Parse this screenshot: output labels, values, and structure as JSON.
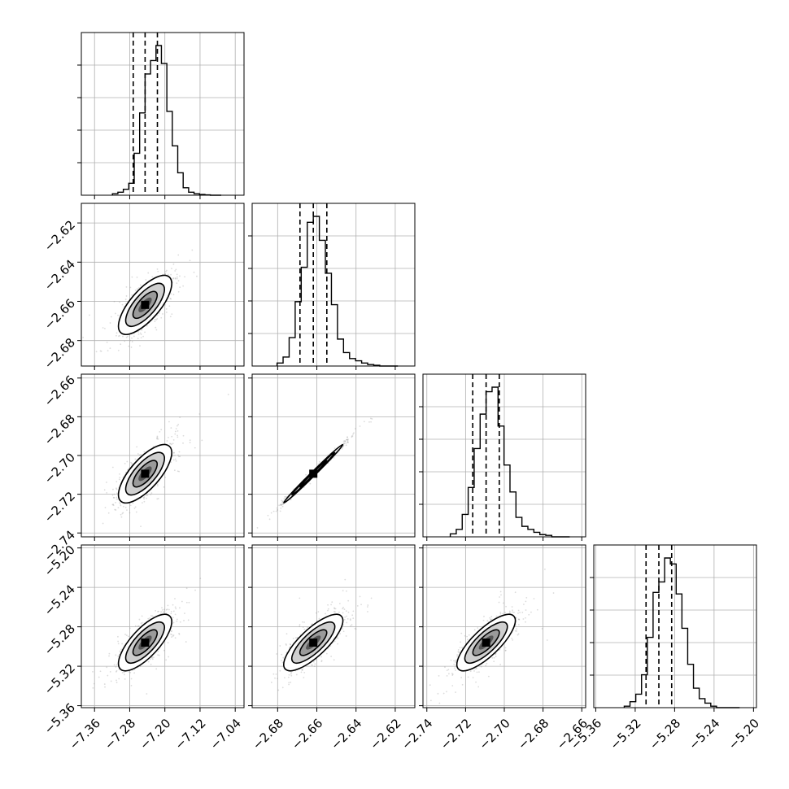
{
  "chart_data": {
    "type": "corner",
    "colors": {
      "line": "#000000",
      "grid": "#b0b0b0",
      "scatter": "#9a9a9a",
      "background": "#ffffff"
    },
    "grid": true,
    "parameters": [
      {
        "range": [
          -7.39,
          -7.02
        ],
        "ticks": [
          "-7.36",
          "-7.28",
          "-7.20",
          "-7.12",
          "-7.04"
        ],
        "tick_values": [
          -7.36,
          -7.28,
          -7.2,
          -7.12,
          -7.04
        ],
        "quantiles": [
          -7.272,
          -7.245,
          -7.217
        ]
      },
      {
        "range": [
          -2.693,
          -2.61
        ],
        "ticks": [
          "-2.68",
          "-2.66",
          "-2.64",
          "-2.62"
        ],
        "tick_values": [
          -2.68,
          -2.66,
          -2.64,
          -2.62
        ],
        "quantiles": [
          -2.6686,
          -2.6618,
          -2.6549
        ]
      },
      {
        "range": [
          -2.742,
          -2.658
        ],
        "ticks": [
          "-2.74",
          "-2.72",
          "-2.70",
          "-2.68",
          "-2.66"
        ],
        "tick_values": [
          -2.74,
          -2.72,
          -2.7,
          -2.68,
          -2.66
        ],
        "quantiles": [
          -2.7163,
          -2.7094,
          -2.7026
        ]
      },
      {
        "range": [
          -5.362,
          -5.197
        ],
        "ticks": [
          "-5.36",
          "-5.32",
          "-5.28",
          "-5.24",
          "-5.20"
        ],
        "tick_values": [
          -5.36,
          -5.32,
          -5.28,
          -5.24,
          -5.2
        ],
        "quantiles": [
          -5.309,
          -5.296,
          -5.283
        ]
      }
    ],
    "histograms": [
      {
        "bin_values": [
          0.01,
          0.02,
          0.04,
          0.08,
          0.28,
          0.55,
          0.81,
          0.9,
          1.0,
          0.88,
          0.56,
          0.33,
          0.15,
          0.05,
          0.02,
          0.01,
          0.005,
          0.002,
          0.0,
          0.0
        ]
      },
      {
        "bin_values": [
          0.02,
          0.06,
          0.19,
          0.43,
          0.66,
          0.96,
          1.0,
          0.84,
          0.62,
          0.41,
          0.18,
          0.09,
          0.05,
          0.035,
          0.02,
          0.01,
          0.005,
          0.0,
          0.0,
          0.0
        ]
      },
      {
        "bin_values": [
          0.02,
          0.05,
          0.15,
          0.33,
          0.59,
          0.82,
          0.97,
          1.0,
          0.74,
          0.48,
          0.3,
          0.13,
          0.07,
          0.05,
          0.03,
          0.015,
          0.01,
          0.0,
          0.0,
          0.0
        ]
      },
      {
        "bin_values": [
          0.01,
          0.04,
          0.09,
          0.22,
          0.47,
          0.77,
          0.84,
          1.0,
          0.96,
          0.76,
          0.53,
          0.29,
          0.13,
          0.06,
          0.03,
          0.01,
          0.0,
          0.0,
          0.0,
          0.0
        ]
      }
    ],
    "pair_correlations": {
      "1-0": 0.72,
      "2-0": 0.72,
      "2-1": 0.995,
      "3-0": 0.74,
      "3-1": 0.78,
      "3-2": 0.78
    }
  }
}
